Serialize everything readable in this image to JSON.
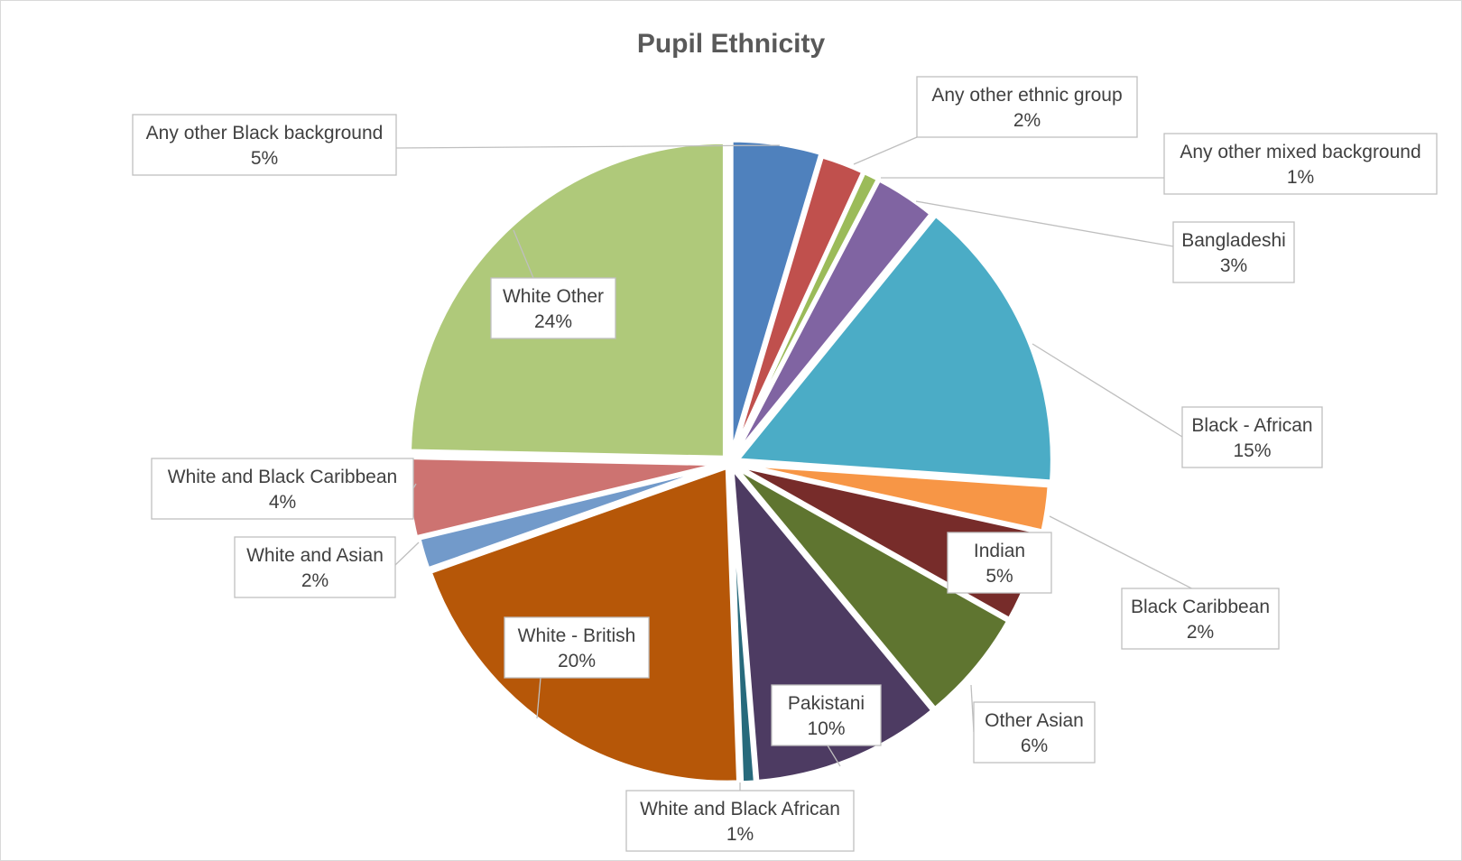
{
  "chart_data": {
    "type": "pie",
    "title": "Pupil Ethnicity",
    "slices": [
      {
        "label": "Any other Black background",
        "percent_label": "5%",
        "value": 4.5,
        "color": "#4f81bd"
      },
      {
        "label": "Any other ethnic group",
        "percent_label": "2%",
        "value": 2.2,
        "color": "#c0504d"
      },
      {
        "label": "Any other mixed background",
        "percent_label": "1%",
        "value": 0.8,
        "color": "#9bbb59"
      },
      {
        "label": "Bangladeshi",
        "percent_label": "3%",
        "value": 3.1,
        "color": "#8064a2"
      },
      {
        "label": "Black - African",
        "percent_label": "15%",
        "value": 14.9,
        "color": "#4bacc6"
      },
      {
        "label": "Black Caribbean",
        "percent_label": "2%",
        "value": 2.3,
        "color": "#f79646"
      },
      {
        "label": "Indian",
        "percent_label": "5%",
        "value": 4.6,
        "color": "#772c2a"
      },
      {
        "label": "Other Asian",
        "percent_label": "6%",
        "value": 5.7,
        "color": "#5f7530"
      },
      {
        "label": "Pakistani",
        "percent_label": "10%",
        "value": 9.5,
        "color": "#4d3b62"
      },
      {
        "label": "White and Black African",
        "percent_label": "1%",
        "value": 0.7,
        "color": "#276a7c"
      },
      {
        "label": "White - British",
        "percent_label": "20%",
        "value": 19.7,
        "color": "#b65708"
      },
      {
        "label": "White and Asian",
        "percent_label": "2%",
        "value": 1.6,
        "color": "#729aca"
      },
      {
        "label": "White and Black Caribbean",
        "percent_label": "4%",
        "value": 4.0,
        "color": "#cd7371"
      },
      {
        "label": "White Other",
        "percent_label": "24%",
        "value": 24.1,
        "color": "#afc97a"
      }
    ]
  }
}
